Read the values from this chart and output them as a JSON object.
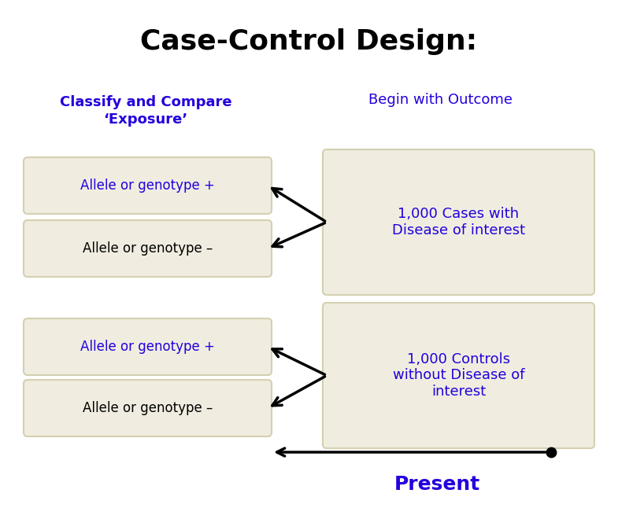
{
  "title": "Case-Control Design:",
  "title_color": "#000000",
  "title_fontsize": 26,
  "title_fontweight": "bold",
  "bg_color": "#ffffff",
  "box_facecolor": "#f0ede0",
  "box_edgecolor": "#d4d0b0",
  "blue_color": "#2200dd",
  "label_left": "Classify and Compare\n‘Exposure’",
  "label_right": "Begin with Outcome",
  "boxes_left_top": [
    "Allele or genotype +",
    "Allele or genotype –"
  ],
  "boxes_left_top_colors": [
    "#2200dd",
    "#000000"
  ],
  "boxes_left_bottom": [
    "Allele or genotype +",
    "Allele or genotype –"
  ],
  "boxes_left_bottom_colors": [
    "#2200dd",
    "#000000"
  ],
  "box_right_top": "1,000 Cases with\nDisease of interest",
  "box_right_bottom": "1,000 Controls\nwithout Disease of\ninterest",
  "timeline_label": "Present",
  "figsize": [
    7.85,
    6.46
  ],
  "dpi": 100
}
